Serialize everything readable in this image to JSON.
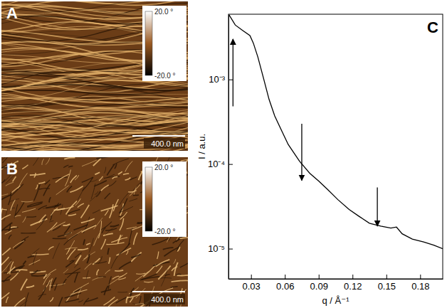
{
  "chart_data": {
    "type": "line",
    "panel_label": "C",
    "x_label": "q / Å⁻¹",
    "y_label": "I / a.u.",
    "log": "y",
    "color": "#000000",
    "x": [
      0.0105,
      0.016,
      0.0225,
      0.029,
      0.032,
      0.036,
      0.041,
      0.046,
      0.051,
      0.057,
      0.063,
      0.073,
      0.082,
      0.09,
      0.098,
      0.107,
      0.117,
      0.126,
      0.135,
      0.145,
      0.154,
      0.159,
      0.164,
      0.173,
      0.183,
      0.192,
      0.2
    ],
    "values": [
      0.0058,
      0.0044,
      0.0038,
      0.0033,
      0.0027,
      0.00185,
      0.00104,
      0.00058,
      0.00037,
      0.00025,
      0.00017,
      0.000108,
      7.8e-05,
      6.3e-05,
      5e-05,
      3.8e-05,
      2.9e-05,
      2.4e-05,
      2e-05,
      1.85e-05,
      1.75e-05,
      1.8e-05,
      1.5e-05,
      1.3e-05,
      1.2e-05,
      1.1e-05,
      1e-05
    ],
    "xlim": [
      0.01,
      0.2
    ],
    "ylim": [
      4.4e-06,
      0.0059
    ],
    "xticks": [
      0.03,
      0.06,
      0.09,
      0.12,
      0.15,
      0.18
    ],
    "yticks": [
      {
        "value": 1e-05,
        "label": "10⁻⁵"
      },
      {
        "value": 0.0001,
        "label": "10⁻⁴"
      },
      {
        "value": 0.001,
        "label": "10⁻³"
      }
    ],
    "annotations": [
      {
        "x": 0.014,
        "y": 0.003,
        "from": 0.00048
      },
      {
        "x": 0.075,
        "y": 6.4e-05,
        "from": 0.0003
      },
      {
        "x": 0.142,
        "y": 1.85e-05,
        "from": 5.3e-05
      }
    ]
  },
  "images": [
    {
      "letter": "A",
      "colorbar": {
        "range": [
          -20,
          20
        ],
        "ticks": [
          {
            "value": 20,
            "label": "20.0 °"
          },
          {
            "value": -20,
            "label": "-20.0 °"
          }
        ]
      },
      "scale_bar": "400.0 nm"
    },
    {
      "letter": "B",
      "colorbar": {
        "range": [
          -20,
          20
        ],
        "ticks": [
          {
            "value": 20,
            "label": "20.0 °"
          },
          {
            "value": -20,
            "label": "-20.0 °"
          }
        ]
      },
      "scale_bar": "400.0 nm"
    }
  ]
}
